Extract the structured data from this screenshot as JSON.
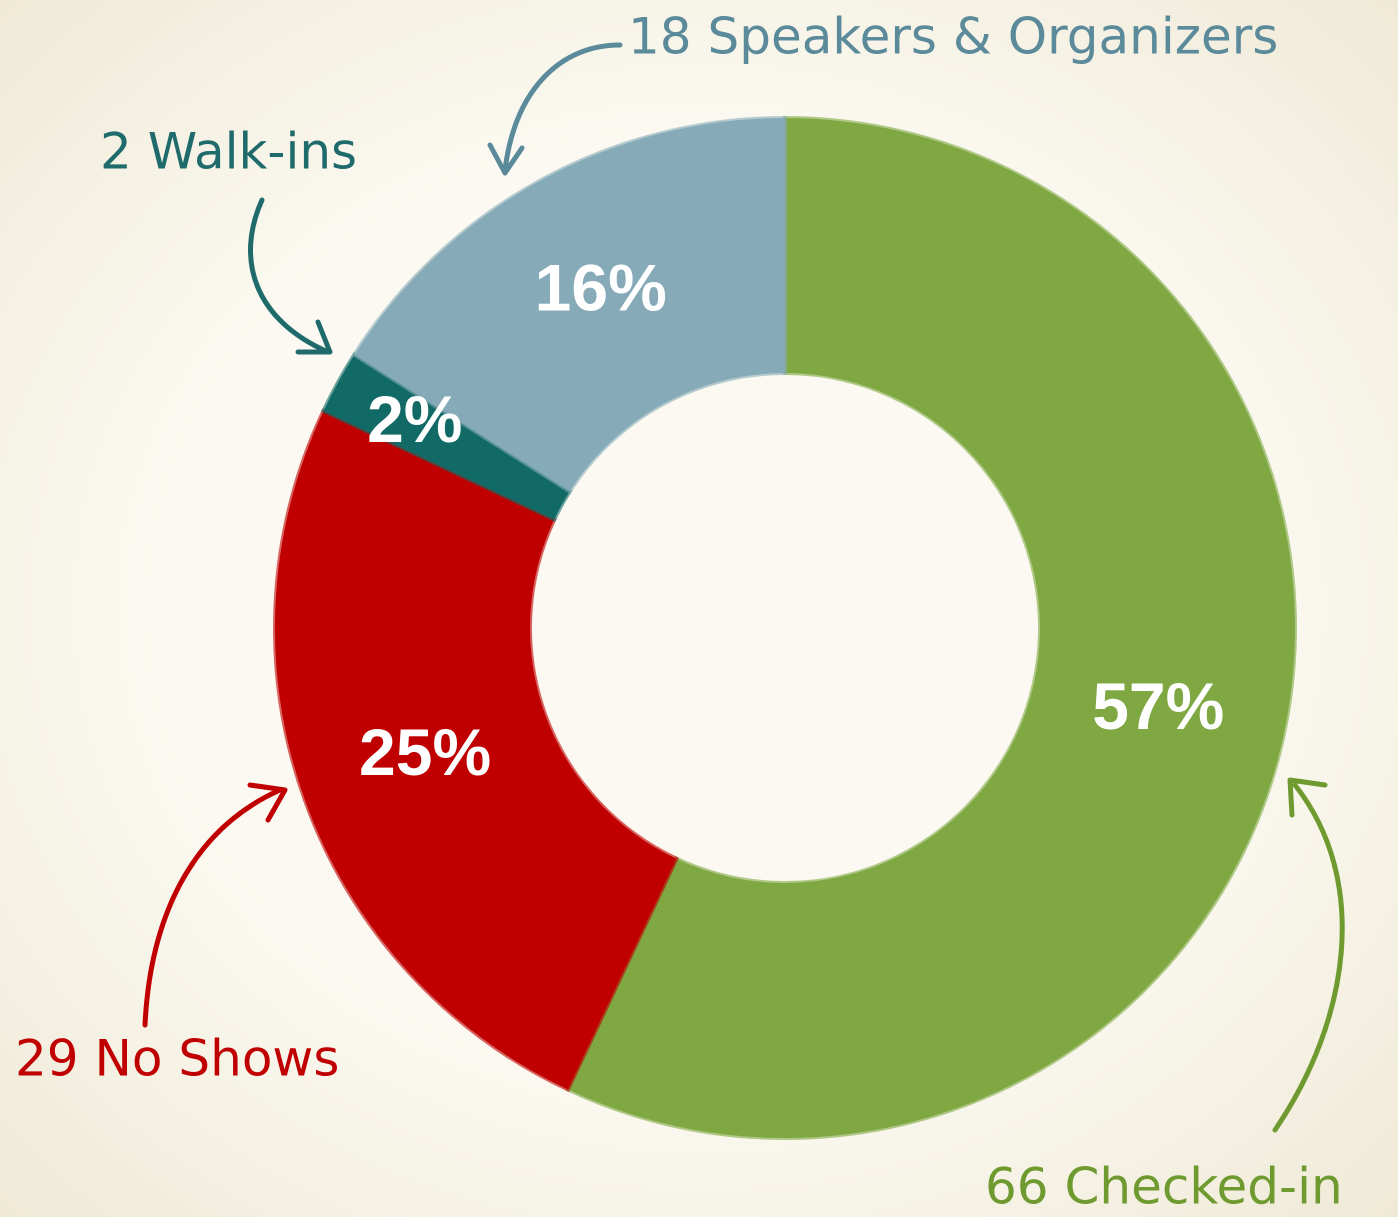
{
  "chart_data": {
    "type": "donut",
    "categories": [
      "66 Checked-in",
      "29 No Shows",
      "2 Walk-ins",
      "18 Speakers & Organizers"
    ],
    "values": [
      57,
      25,
      2,
      16
    ],
    "value_labels": [
      "57%",
      "25%",
      "2%",
      "16%"
    ],
    "colors": [
      "#7fa843",
      "#c00000",
      "#116a66",
      "#86aab8"
    ],
    "annotation_colors": [
      "#6e9a30",
      "#c00000",
      "#1f6b6b",
      "#5b8a9a"
    ]
  }
}
